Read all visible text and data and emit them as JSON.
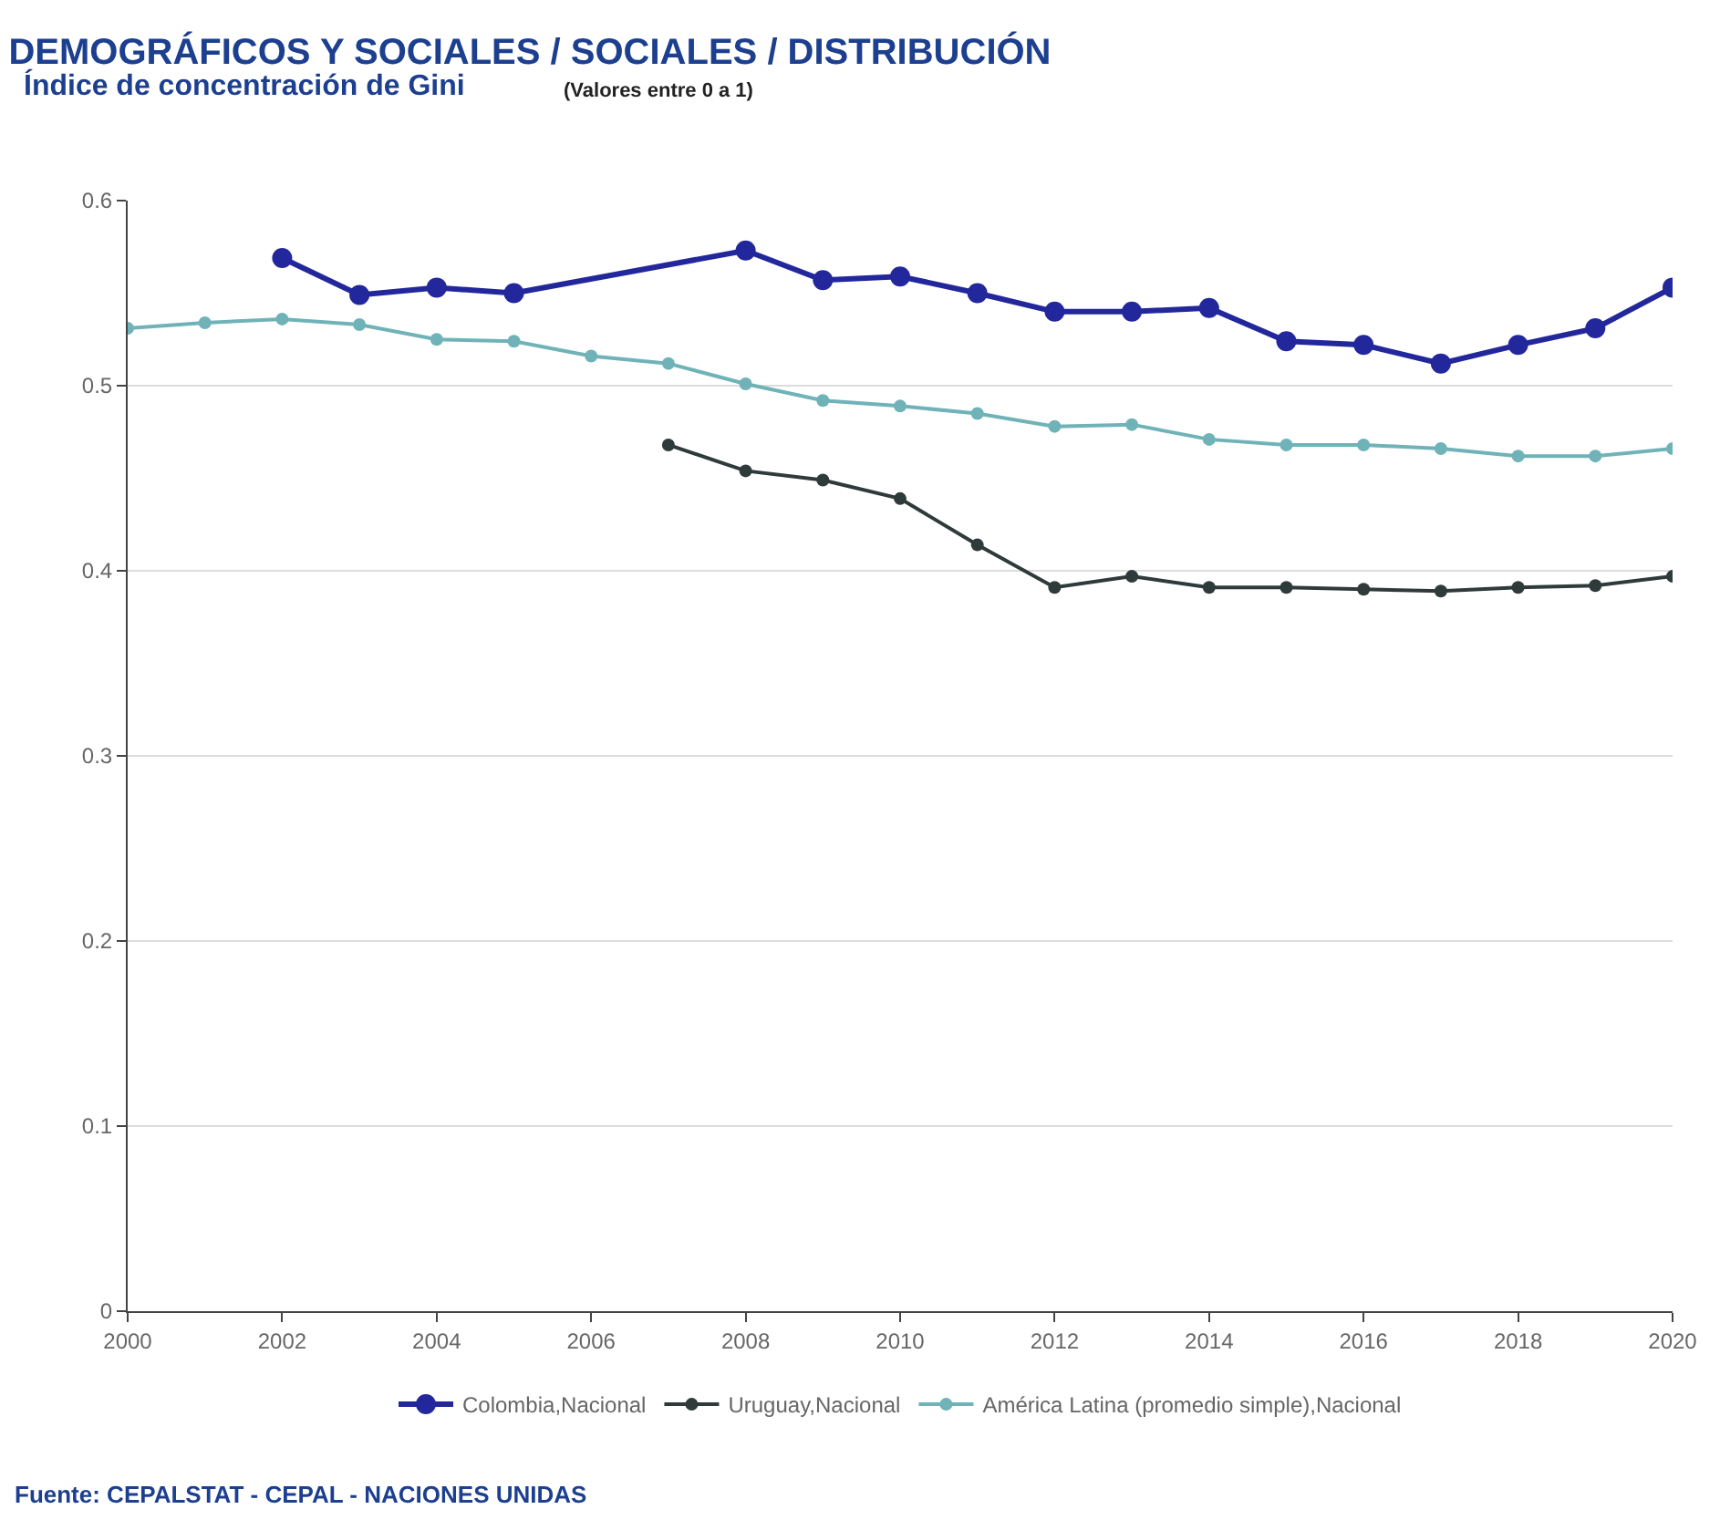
{
  "chart_data": {
    "type": "line",
    "title": "DEMOGRÁFICOS Y SOCIALES / SOCIALES / DISTRIBUCIÓN",
    "subtitle": "Índice de concentración de Gini",
    "annotations": [
      "(Valores entre 0 a 1)",
      "Fuente: CEPALSTAT - CEPAL - NACIONES UNIDAS"
    ],
    "series": [
      {
        "name": "Colombia,Nacional",
        "color": "#23279c",
        "x": [
          2002,
          2003,
          2004,
          2005,
          2008,
          2009,
          2010,
          2011,
          2012,
          2013,
          2014,
          2015,
          2016,
          2017,
          2018,
          2019,
          2020
        ],
        "values": [
          0.569,
          0.549,
          0.553,
          0.55,
          0.573,
          0.557,
          0.559,
          0.55,
          0.54,
          0.54,
          0.542,
          0.524,
          0.522,
          0.512,
          0.522,
          0.531,
          0.553
        ]
      },
      {
        "name": "Uruguay,Nacional",
        "color": "#2f3a3a",
        "x": [
          2007,
          2008,
          2009,
          2010,
          2011,
          2012,
          2013,
          2014,
          2015,
          2016,
          2017,
          2018,
          2019,
          2020
        ],
        "values": [
          0.468,
          0.454,
          0.449,
          0.439,
          0.414,
          0.391,
          0.397,
          0.391,
          0.391,
          0.39,
          0.389,
          0.391,
          0.392,
          0.397
        ]
      },
      {
        "name": "América Latina (promedio simple),Nacional",
        "color": "#6fb3b8",
        "x": [
          2000,
          2001,
          2002,
          2003,
          2004,
          2005,
          2006,
          2007,
          2008,
          2009,
          2010,
          2011,
          2012,
          2013,
          2014,
          2015,
          2016,
          2017,
          2018,
          2019,
          2020
        ],
        "values": [
          0.531,
          0.534,
          0.536,
          0.533,
          0.525,
          0.524,
          0.516,
          0.512,
          0.501,
          0.492,
          0.489,
          0.485,
          0.478,
          0.479,
          0.471,
          0.468,
          0.468,
          0.466,
          0.462,
          0.462,
          0.466
        ]
      }
    ],
    "xlim": [
      2000,
      2020
    ],
    "xticks": [
      2000,
      2002,
      2004,
      2006,
      2008,
      2010,
      2012,
      2014,
      2016,
      2018,
      2020
    ],
    "ylim": [
      0,
      0.6
    ],
    "yticks": [
      0,
      0.1,
      0.2,
      0.3,
      0.4,
      0.5,
      0.6
    ],
    "grid": "y",
    "legend": "bottom",
    "marker": "circle",
    "line_style": "solid"
  }
}
